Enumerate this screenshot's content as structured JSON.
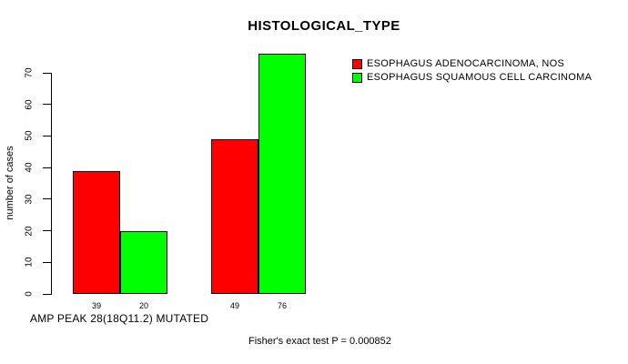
{
  "chart_data": {
    "type": "bar",
    "title": "HISTOLOGICAL_TYPE",
    "ylabel": "number of cases",
    "xlabel": "AMP PEAK 28(18Q11.2) MUTATED",
    "annotation": "Fisher's exact test P = 0.000852",
    "legend_position": "right",
    "grid": false,
    "yticks": [
      0,
      10,
      20,
      30,
      40,
      50,
      60,
      70
    ],
    "ylim": [
      0,
      70
    ],
    "series": [
      {
        "name": "ESOPHAGUS ADENOCARCINOMA, NOS",
        "color": "#FF0000",
        "values": [
          39,
          49
        ]
      },
      {
        "name": "ESOPHAGUS SQUAMOUS CELL CARCINOMA",
        "color": "#00FF00",
        "values": [
          20,
          76
        ]
      }
    ],
    "bar_value_labels": [
      [
        39,
        20
      ],
      [
        49,
        76
      ]
    ]
  }
}
